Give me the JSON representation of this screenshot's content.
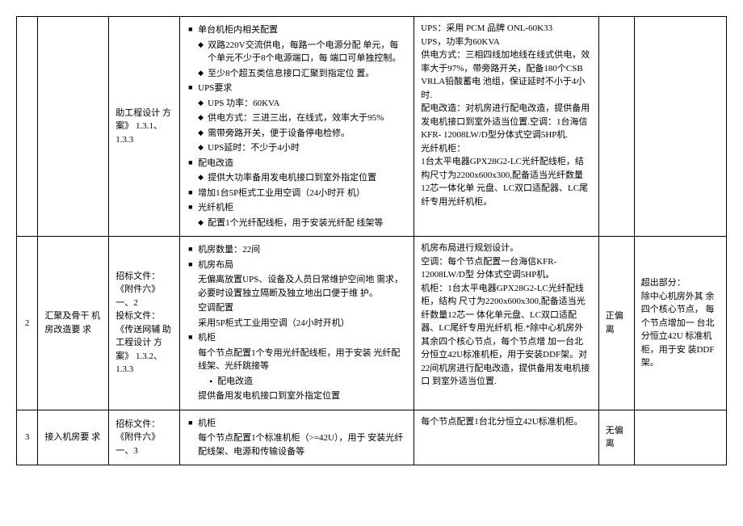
{
  "rows": [
    {
      "num": "",
      "col2": "",
      "col3": "助工程设计 方案》 1.3.1、1.3.3",
      "col4_items": [
        {
          "t": "sq",
          "v": "单台机柜内相关配置"
        },
        {
          "t": "diam",
          "v": "双路220V交流供电，每路一个电源分配 单元，每个单元不少于8个电源端口，每 端口可单独控制。"
        },
        {
          "t": "diam",
          "v": "至少8个超五类信息接口汇聚到指定位 置。"
        },
        {
          "t": "sq",
          "v": "UPS要求"
        },
        {
          "t": "diam",
          "v": "UPS 功率：60KVA"
        },
        {
          "t": "diam",
          "v": "供电方式：三进三出，在线式，效率大于95%"
        },
        {
          "t": "diam",
          "v": "需带旁路开关，便于设备停电检修。"
        },
        {
          "t": "diam",
          "v": "UPS延时：不少于4小时"
        },
        {
          "t": "sq",
          "v": "配电改造"
        },
        {
          "t": "diam",
          "v": "提供大功率备用发电机接口到室外指定位置"
        },
        {
          "t": "sq",
          "v": "增加1台5P柜式工业用空调（24小时开 机）"
        },
        {
          "t": "sq",
          "v": "光纤机柜"
        },
        {
          "t": "diam",
          "v": "配置1个光纤配线柜，用于安装光纤配 线架等"
        }
      ],
      "col5": "UPS：采用 PCM 品牌 ONL-60K33\nUPS，功率为60KVA\n供电方式：三相四线加地线在线式供电，效率大于97%，带旁路开关，配备180个CSB VRLA铅酸蓄电 池组，保证延时不小于4小时.\n配电改造：对机房进行配电改造，提供备用发电机接口到室外适当位置.空调：1台海信KFR- 12008LW/D型分体式空调5HP机.\n光纤机柜：\n1台太平电器GPX28G2-LC光纤配线柜，结构尺寸为2200x600x300,配备适当光纤数量12芯一体化单 元盘、LC双口适配器、LC尾纤专用光纤机柜。",
      "col6": "",
      "col7": ""
    },
    {
      "num": "2",
      "col2": "汇聚及骨干 机房改造要 求",
      "col3": "招标文件：《附件六》一、2\n投标文件：《传送网辅 助工程设计 方案》 1.3.2、1.3.3",
      "col4_items": [
        {
          "t": "sq",
          "v": "机房数量：22间"
        },
        {
          "t": "sq",
          "v": "机房布局"
        },
        {
          "t": "ind",
          "v": "无偏离放置UPS、设备及人员日常维护空间地 需求，必要时设置独立隔断及独立地出口便于维 护。"
        },
        {
          "t": "ind",
          "v": "空调配置"
        },
        {
          "t": "ind",
          "v": "采用5P柜式工业用空调（24小时开机）"
        },
        {
          "t": "sq",
          "v": "机柜"
        },
        {
          "t": "ind",
          "v": "每个节点配置1个专用光纤配线柜，用于安装 光纤配线架、光纤跳接等"
        },
        {
          "t": "dot",
          "v": "配电改造"
        },
        {
          "t": "ind",
          "v": "提供备用发电机接口到室外指定位置"
        }
      ],
      "col5": "机房布局进行规划设计。\n空调：每个节点配置一台海信KFR-12008LW/D型 分体式空调5HP机。\n机柜：1台太平电器GPX28G2-LC光纤配线柜，结构 尺寸为2200x600x300,配备适当光纤数量12芯一 体化单元盘、LC双口适配器、LC尾纤专用光纤机 柜.*除中心机房外其余四个核心节点，每个节点增 加一台北分恒立42U标准机柜，用于安装DDF架。对22间机房进行配电改造，提供备用发电机接口 到室外适当位置.",
      "col6": "正偏离",
      "col7": "超出部分：\n除中心机房外其 余四个核心节点， 每个节点增加一 台北分恒立42U 标准机柜，用于安 装DDF架。"
    },
    {
      "num": "3",
      "col2": "接入机房要 求",
      "col3": "招标文件：《附件六》一、3",
      "col4_items": [
        {
          "t": "sq",
          "v": "机柜"
        },
        {
          "t": "ind",
          "v": "每个节点配置1个标准机柜（>=42U），用于 安装光纤配线架、电源和传输设备等"
        }
      ],
      "col5": "每个节点配置1台北分恒立42U标准机柜。",
      "col6": "无偏离",
      "col7": ""
    }
  ]
}
